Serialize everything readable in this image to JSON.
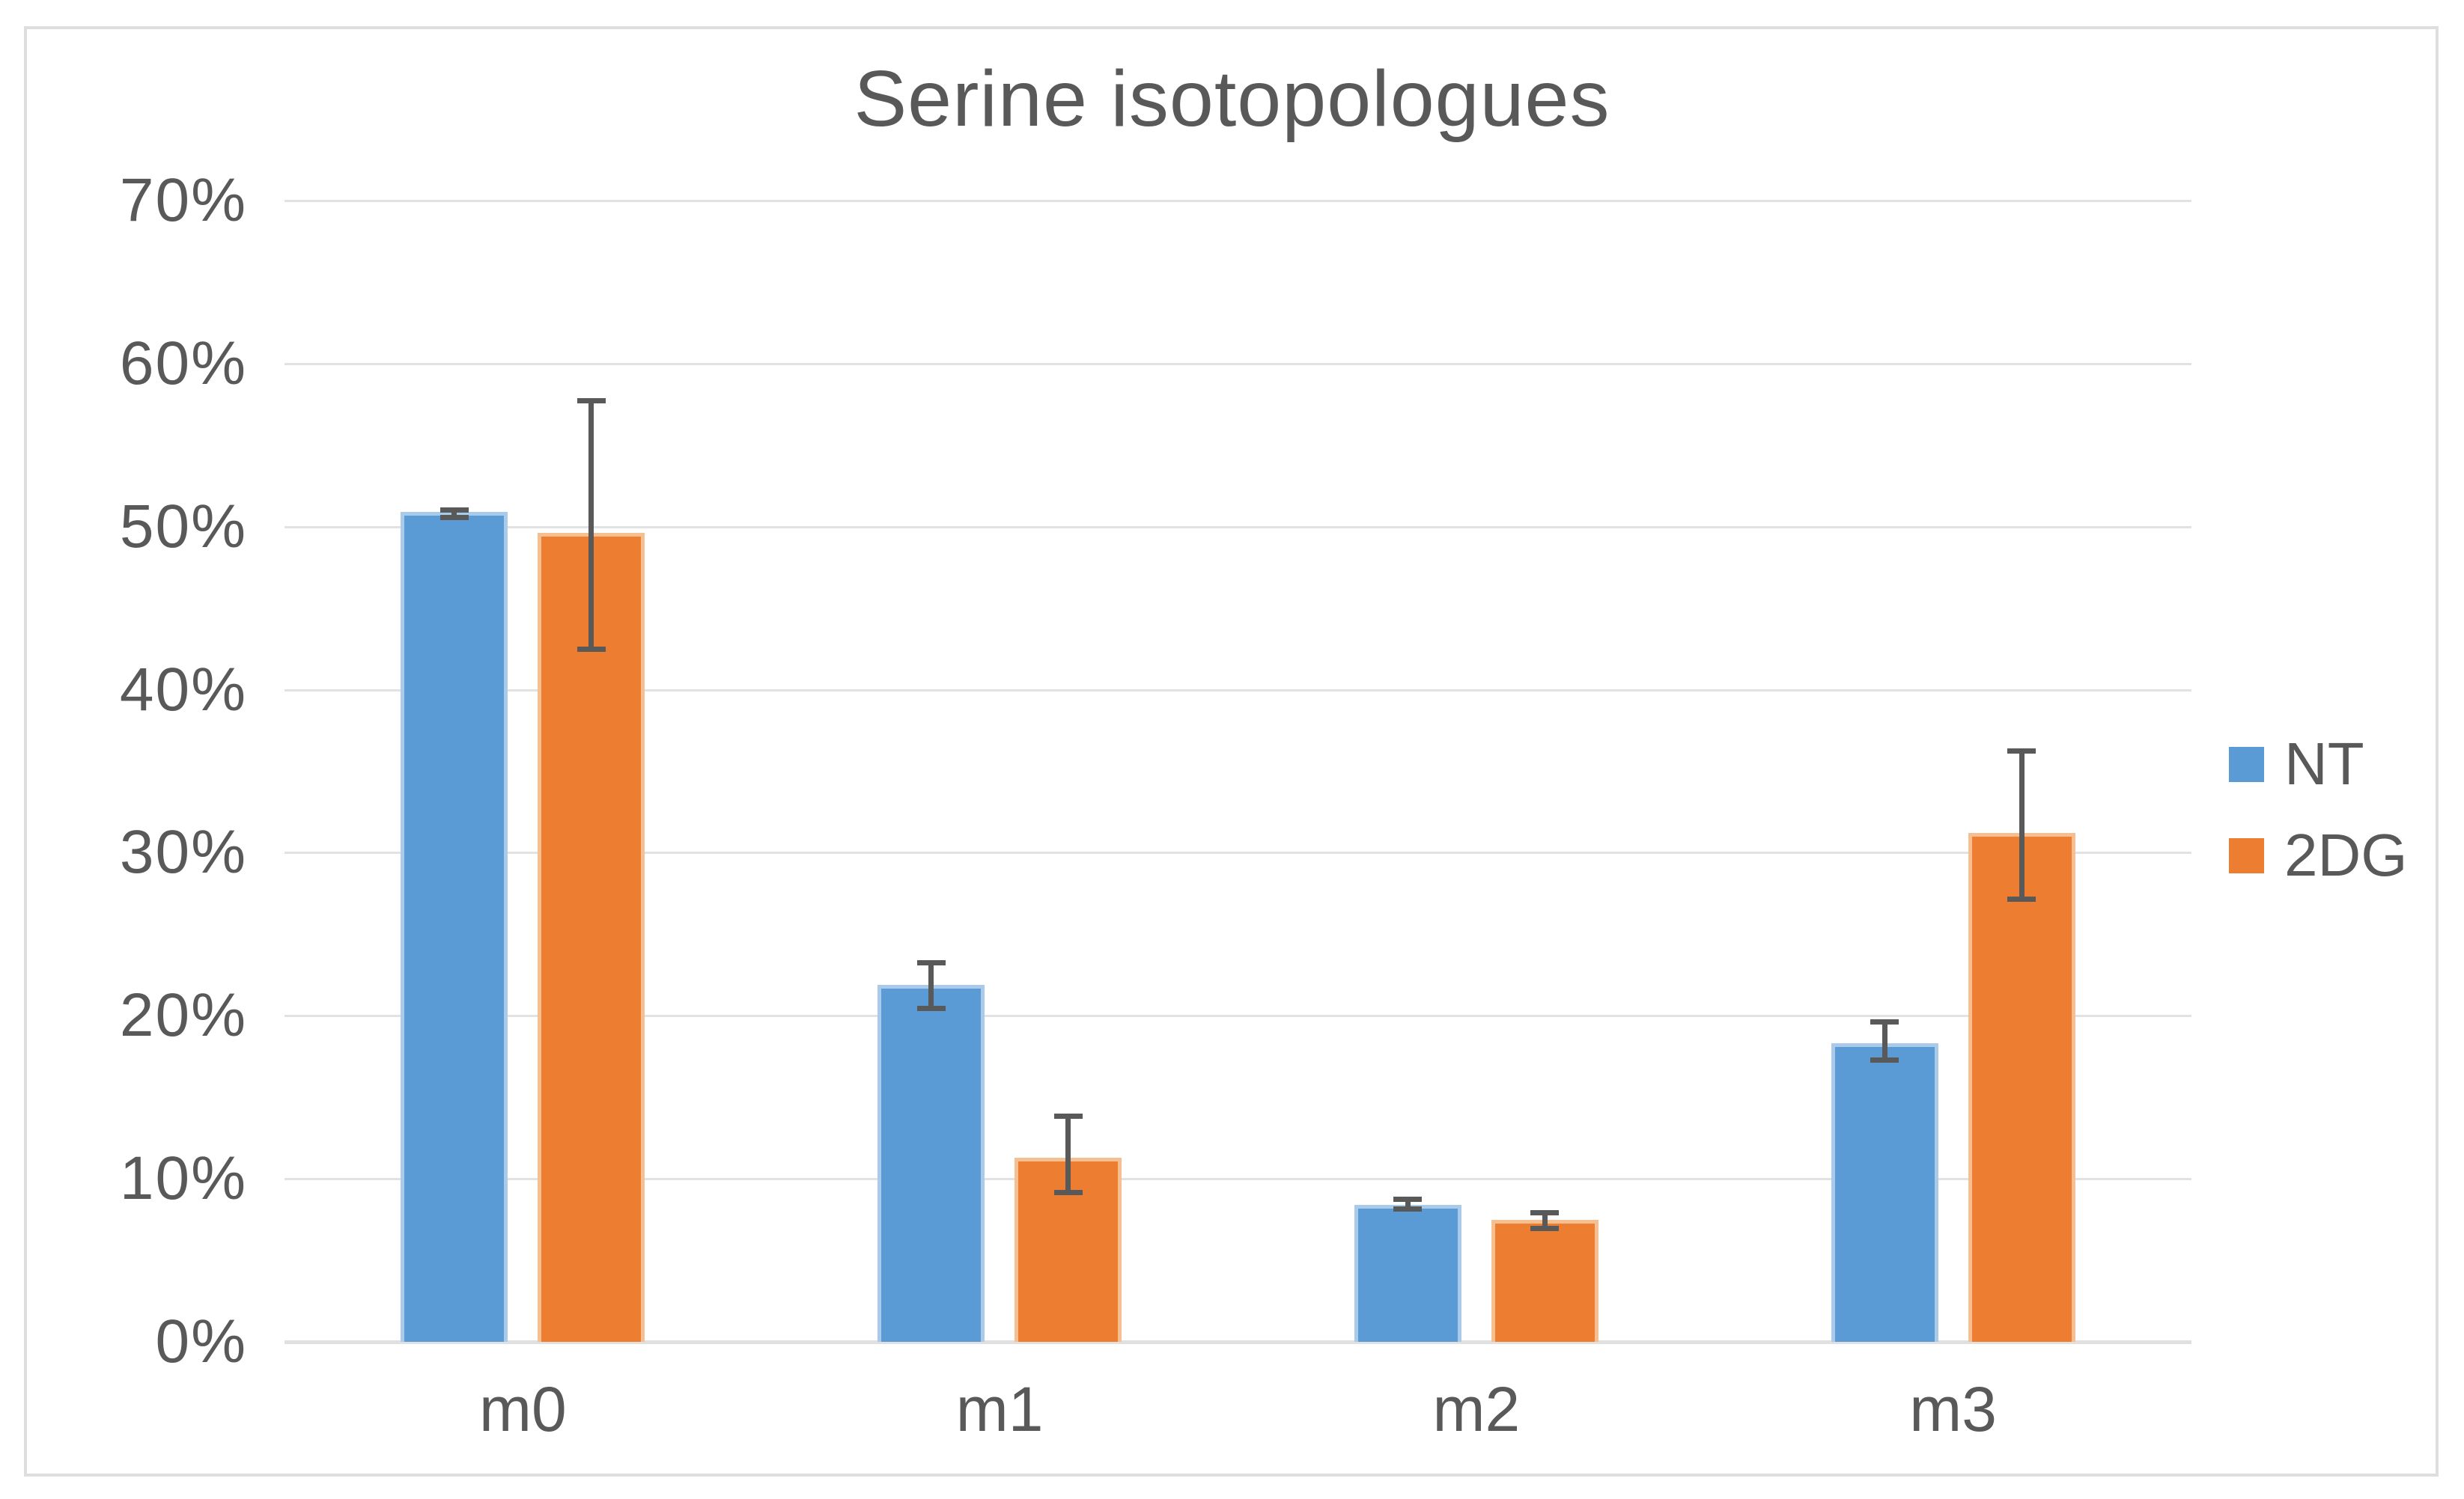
{
  "chart_data": {
    "type": "bar",
    "title": "Serine isotopologues",
    "categories": [
      "m0",
      "m1",
      "m2",
      "m3"
    ],
    "series": [
      {
        "name": "NT",
        "color": "#5b9bd5",
        "values": [
          50.9,
          21.9,
          8.4,
          18.3
        ],
        "error_low": [
          50.4,
          20.3,
          8.0,
          17.1
        ],
        "error_high": [
          51.2,
          23.4,
          8.9,
          19.8
        ]
      },
      {
        "name": "2DG",
        "color": "#ed7d31",
        "values": [
          49.6,
          11.3,
          7.5,
          31.2
        ],
        "error_low": [
          42.3,
          9.0,
          6.8,
          27.0
        ],
        "error_high": [
          57.9,
          14.0,
          8.1,
          36.4
        ]
      }
    ],
    "y_axis": {
      "min": 0,
      "max": 70,
      "step": 10,
      "tick_labels": [
        "0%",
        "10%",
        "20%",
        "30%",
        "40%",
        "50%",
        "60%",
        "70%"
      ]
    },
    "grid": true,
    "legend_position": "right",
    "style": {
      "gridline_color": "#e2e2e2",
      "error_bar_color": "#595959",
      "text_color": "#595959",
      "frame_border_color": "#dedede",
      "background": "#ffffff"
    }
  }
}
